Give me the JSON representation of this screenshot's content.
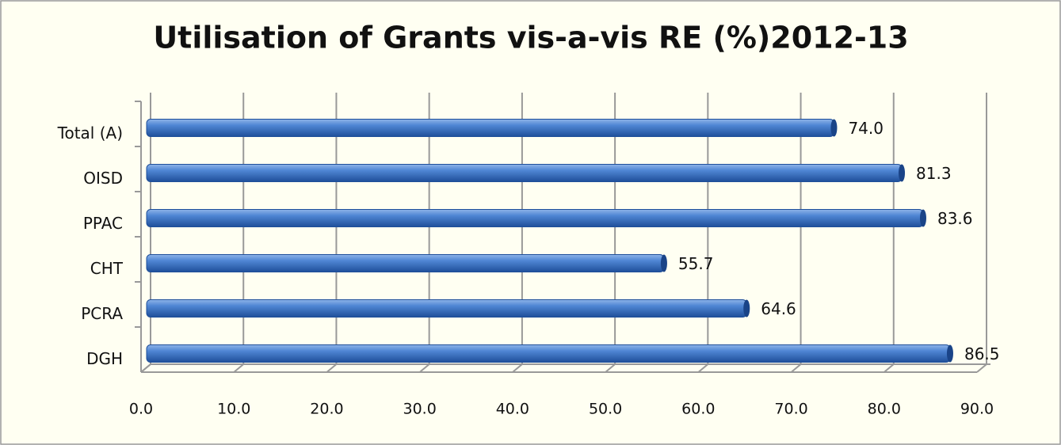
{
  "chart_data": {
    "type": "bar",
    "orientation": "horizontal",
    "title": "Utilisation of Grants vis-a-vis RE (%)2012-13",
    "categories": [
      "Total (A)",
      "OISD",
      "PPAC",
      "CHT",
      "PCRA",
      "DGH"
    ],
    "values": [
      74.0,
      81.3,
      83.6,
      55.7,
      64.6,
      86.5
    ],
    "value_labels": [
      "74.0",
      "81.3",
      "83.6",
      "55.7",
      "64.6",
      "86.5"
    ],
    "color": "#3a70c0",
    "xlim": [
      0,
      90
    ],
    "xticks": [
      {
        "value": 0,
        "label": "0.0"
      },
      {
        "value": 10,
        "label": "10.0"
      },
      {
        "value": 20,
        "label": "20.0"
      },
      {
        "value": 30,
        "label": "30.0"
      },
      {
        "value": 40,
        "label": "40.0"
      },
      {
        "value": 50,
        "label": "50.0"
      },
      {
        "value": 60,
        "label": "60.0"
      },
      {
        "value": 70,
        "label": "70.0"
      },
      {
        "value": 80,
        "label": "80.0"
      },
      {
        "value": 90,
        "label": "90.0"
      }
    ],
    "grid": true
  }
}
